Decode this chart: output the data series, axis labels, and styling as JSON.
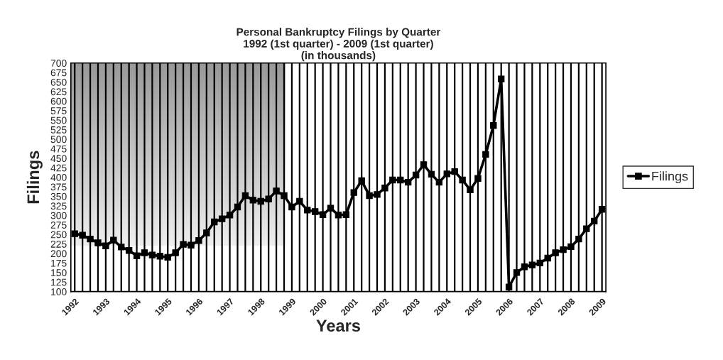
{
  "chart_data": {
    "type": "line",
    "title": "Personal Bankruptcy Filings by Quarter\n1992 (1st quarter) - 2009 (1st quarter)\n(in thousands)",
    "xlabel": "Years",
    "ylabel": "Filings",
    "categories": [
      "1992",
      null,
      null,
      null,
      "1993",
      null,
      null,
      null,
      "1994",
      null,
      null,
      null,
      "1995",
      null,
      null,
      null,
      "1996",
      null,
      null,
      null,
      "1997",
      null,
      null,
      null,
      "1998",
      null,
      null,
      null,
      "1999",
      null,
      null,
      null,
      "2000",
      null,
      null,
      null,
      "2001",
      null,
      null,
      null,
      "2002",
      null,
      null,
      null,
      "2003",
      null,
      null,
      null,
      "2004",
      null,
      null,
      null,
      "2005",
      null,
      null,
      null,
      "2006",
      null,
      null,
      null,
      "2007",
      null,
      null,
      null,
      "2008",
      null,
      null,
      null,
      "2009"
    ],
    "series": [
      {
        "name": "Filings",
        "color": "#000000",
        "values": [
          252,
          248,
          238,
          228,
          220,
          235,
          217,
          208,
          194,
          202,
          196,
          193,
          190,
          202,
          224,
          222,
          234,
          254,
          283,
          291,
          301,
          322,
          352,
          340,
          337,
          343,
          364,
          352,
          322,
          337,
          314,
          310,
          302,
          319,
          301,
          302,
          360,
          391,
          352,
          355,
          372,
          393,
          393,
          387,
          406,
          433,
          408,
          387,
          409,
          415,
          393,
          367,
          397,
          460,
          536,
          658,
          112,
          150,
          165,
          170,
          175,
          188,
          202,
          210,
          218,
          238,
          265,
          285,
          316
        ]
      }
    ],
    "ylim": [
      100,
      700
    ],
    "yticks": [
      100,
      125,
      150,
      175,
      200,
      225,
      250,
      275,
      300,
      325,
      350,
      375,
      400,
      425,
      450,
      475,
      500,
      525,
      550,
      575,
      600,
      625,
      650,
      675,
      700
    ],
    "grid": "x",
    "legend": "right",
    "marker": "square",
    "line_style": "solid"
  }
}
